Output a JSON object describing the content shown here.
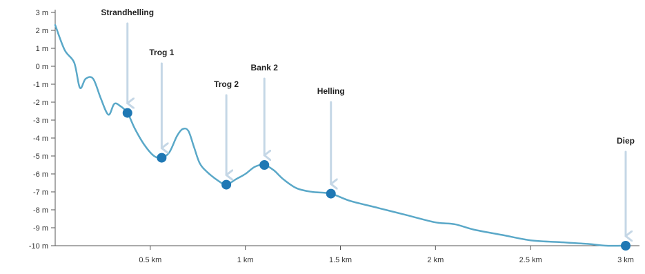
{
  "chart_data": {
    "type": "line",
    "title": "",
    "xlabel": "",
    "ylabel": "",
    "xlim": [
      0,
      3
    ],
    "ylim": [
      -10,
      3
    ],
    "x_ticks": [
      {
        "value": 0.5,
        "label": "0.5 km"
      },
      {
        "value": 1.0,
        "label": "1 km"
      },
      {
        "value": 1.5,
        "label": "1.5 km"
      },
      {
        "value": 2.0,
        "label": "2 km"
      },
      {
        "value": 2.5,
        "label": "2.5 km"
      },
      {
        "value": 3.0,
        "label": "3 km"
      }
    ],
    "y_ticks": [
      {
        "value": 3,
        "label": "3 m"
      },
      {
        "value": 2,
        "label": "2 m"
      },
      {
        "value": 1,
        "label": "1 m"
      },
      {
        "value": 0,
        "label": "0 m"
      },
      {
        "value": -1,
        "label": "-1 m"
      },
      {
        "value": -2,
        "label": "-2 m"
      },
      {
        "value": -3,
        "label": "-3 m"
      },
      {
        "value": -4,
        "label": "-4 m"
      },
      {
        "value": -5,
        "label": "-5 m"
      },
      {
        "value": -6,
        "label": "-6 m"
      },
      {
        "value": -7,
        "label": "-7 m"
      },
      {
        "value": -8,
        "label": "-8 m"
      },
      {
        "value": -9,
        "label": "-9 m"
      },
      {
        "value": -10,
        "label": "-10 m"
      }
    ],
    "grid": false,
    "series": [
      {
        "x": [
          0.0,
          0.05,
          0.1,
          0.13,
          0.16,
          0.2,
          0.24,
          0.28,
          0.31,
          0.34,
          0.38,
          0.42,
          0.47,
          0.52,
          0.56,
          0.6,
          0.64,
          0.67,
          0.7,
          0.73,
          0.76,
          0.8,
          0.86,
          0.9,
          0.95,
          1.0,
          1.05,
          1.1,
          1.15,
          1.2,
          1.27,
          1.35,
          1.45,
          1.55,
          1.7,
          1.85,
          2.0,
          2.1,
          2.2,
          2.35,
          2.5,
          2.65,
          2.8,
          2.9,
          3.0
        ],
        "y": [
          2.3,
          0.9,
          0.2,
          -1.2,
          -0.7,
          -0.7,
          -1.8,
          -2.7,
          -2.1,
          -2.2,
          -2.6,
          -3.5,
          -4.4,
          -5.0,
          -5.1,
          -4.8,
          -3.9,
          -3.5,
          -3.6,
          -4.5,
          -5.4,
          -5.9,
          -6.4,
          -6.6,
          -6.3,
          -6.0,
          -5.6,
          -5.5,
          -5.8,
          -6.3,
          -6.8,
          -7.0,
          -7.1,
          -7.5,
          -7.9,
          -8.3,
          -8.7,
          -8.8,
          -9.1,
          -9.4,
          -9.7,
          -9.8,
          -9.9,
          -10.0,
          -10.0
        ]
      }
    ],
    "annotations": [
      {
        "label": "Strandhelling",
        "x": 0.38,
        "y": -2.6
      },
      {
        "label": "Trog 1",
        "x": 0.56,
        "y": -5.1
      },
      {
        "label": "Trog 2",
        "x": 0.9,
        "y": -6.6
      },
      {
        "label": "Bank 2",
        "x": 1.1,
        "y": -5.5
      },
      {
        "label": "Helling",
        "x": 1.45,
        "y": -7.1
      },
      {
        "label": "Diep",
        "x": 3.0,
        "y": -10.0
      }
    ],
    "colors": {
      "line": "#5aa8c8",
      "marker": "#1f78b4",
      "arrow": "#c5d7e6",
      "axis": "#555555",
      "text": "#1f1f1f"
    }
  }
}
